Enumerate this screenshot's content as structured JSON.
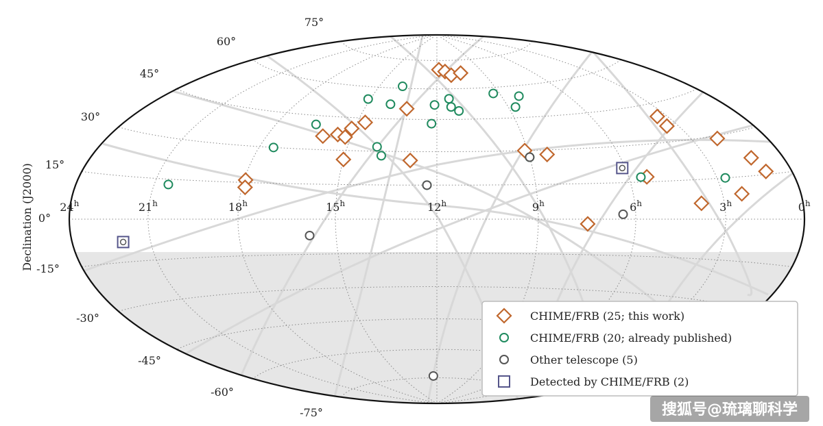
{
  "chart_data": {
    "type": "scatter",
    "projection": "aitoff-hammer",
    "ylabel": "Declination (J2000)",
    "ra_tick_labels": [
      "24h",
      "21h",
      "18h",
      "15h",
      "12h",
      "9h",
      "6h",
      "3h",
      "0h"
    ],
    "dec_tick_labels_north": [
      "75°",
      "60°",
      "45°",
      "30°",
      "15°",
      "0°"
    ],
    "dec_tick_labels_south": [
      "-15°",
      "-30°",
      "-45°",
      "-60°",
      "-75°"
    ],
    "grid": true,
    "shaded_region": "declination below about -11° (unobservable)",
    "legend_position": "bottom-right",
    "series": [
      {
        "name": "CHIME/FRB (25; this work)",
        "marker": "diamond",
        "color": "#c0672d",
        "points": [
          {
            "ra": 11.86,
            "dec": 70
          },
          {
            "ra": 11.45,
            "dec": 69
          },
          {
            "ra": 11.1,
            "dec": 67
          },
          {
            "ra": 10.45,
            "dec": 68
          },
          {
            "ra": 13.25,
            "dec": 50
          },
          {
            "ra": 14.7,
            "dec": 43
          },
          {
            "ra": 15.1,
            "dec": 40
          },
          {
            "ra": 15.5,
            "dec": 37
          },
          {
            "ra": 15.2,
            "dec": 36
          },
          {
            "ra": 16.0,
            "dec": 36
          },
          {
            "ra": 15.0,
            "dec": 26
          },
          {
            "ra": 12.85,
            "dec": 26
          },
          {
            "ra": 9.1,
            "dec": 30
          },
          {
            "ra": 8.4,
            "dec": 28
          },
          {
            "ra": 17.95,
            "dec": 16
          },
          {
            "ra": 17.9,
            "dec": 13
          },
          {
            "ra": 5.4,
            "dec": 17
          },
          {
            "ra": 3.4,
            "dec": 40
          },
          {
            "ra": 3.45,
            "dec": 36
          },
          {
            "ra": 2.0,
            "dec": 29
          },
          {
            "ra": 1.3,
            "dec": 21
          },
          {
            "ra": 1.05,
            "dec": 16
          },
          {
            "ra": 2.3,
            "dec": 9
          },
          {
            "ra": 3.8,
            "dec": 6
          },
          {
            "ra": 7.5,
            "dec": -2
          }
        ]
      },
      {
        "name": "CHIME/FRB (20; already published)",
        "marker": "circle",
        "color": "#1f8a5e",
        "points": [
          {
            "ra": 13.8,
            "dec": 61
          },
          {
            "ra": 15.1,
            "dec": 54
          },
          {
            "ra": 14.0,
            "dec": 52
          },
          {
            "ra": 12.1,
            "dec": 52
          },
          {
            "ra": 11.45,
            "dec": 55
          },
          {
            "ra": 11.4,
            "dec": 51
          },
          {
            "ra": 11.1,
            "dec": 49
          },
          {
            "ra": 9.3,
            "dec": 57
          },
          {
            "ra": 8.7,
            "dec": 50
          },
          {
            "ra": 12.2,
            "dec": 43
          },
          {
            "ra": 16.5,
            "dec": 41
          },
          {
            "ra": 17.5,
            "dec": 30
          },
          {
            "ra": 14.0,
            "dec": 32
          },
          {
            "ra": 13.8,
            "dec": 28
          },
          {
            "ra": 8.2,
            "dec": 55
          },
          {
            "ra": 9.0,
            "dec": 27
          },
          {
            "ra": 12.3,
            "dec": 15
          },
          {
            "ra": 20.5,
            "dec": 13
          },
          {
            "ra": 5.6,
            "dec": 17
          },
          {
            "ra": 2.7,
            "dec": 15
          }
        ]
      },
      {
        "name": "Other telescope (5)",
        "marker": "circle",
        "color": "#555555",
        "points": [
          {
            "ra": 9.0,
            "dec": 27
          },
          {
            "ra": 12.3,
            "dec": 15
          },
          {
            "ra": 6.4,
            "dec": 2
          },
          {
            "ra": 15.8,
            "dec": -7
          },
          {
            "ra": 12.3,
            "dec": -74
          }
        ]
      },
      {
        "name": "Detected by CHIME/FRB (2)",
        "marker": "square",
        "color": "#55558a",
        "points": [
          {
            "ra": 6.1,
            "dec": 21
          },
          {
            "ra": 22.0,
            "dec": -8
          }
        ]
      }
    ]
  },
  "watermark": "搜狐号@琉璃聊科学"
}
